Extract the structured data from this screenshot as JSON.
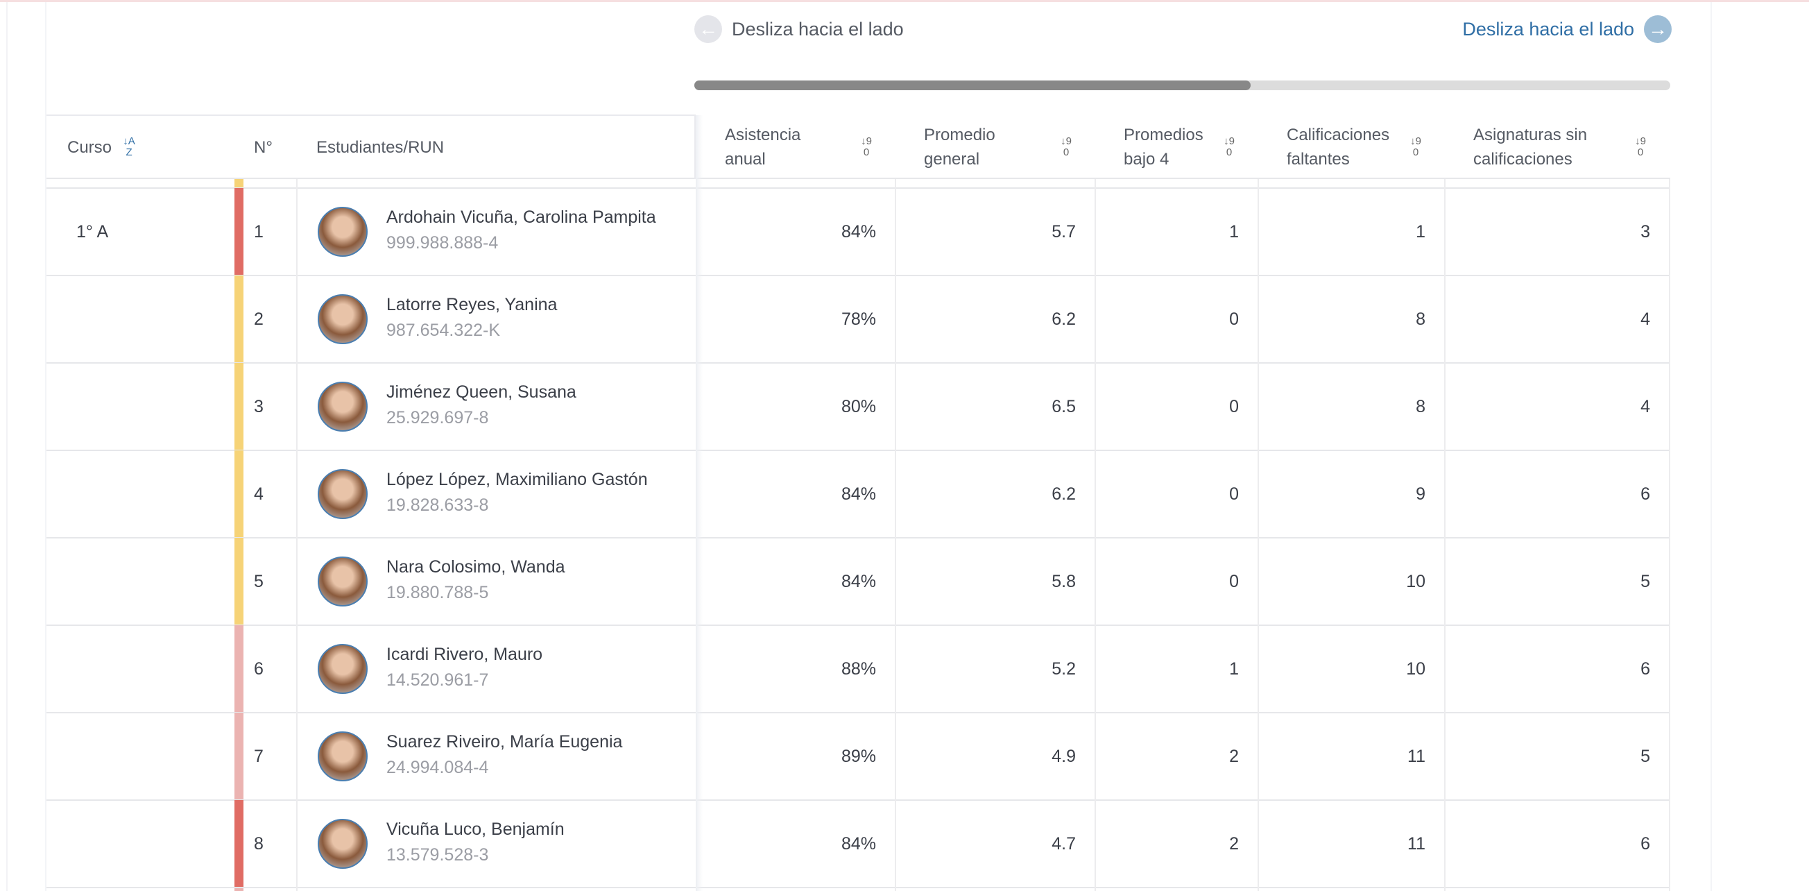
{
  "nav": {
    "prev_label": "Desliza hacia el lado",
    "next_label": "Desliza hacia el lado",
    "prev_icon": "arrow-left-icon",
    "next_icon": "arrow-right-icon"
  },
  "scroll": {
    "position_fraction": 0.57
  },
  "colors": {
    "accent": "#2f6ea5",
    "red": "#e06c64",
    "yellow": "#f6d377",
    "pink": "#ebb3b1"
  },
  "headers": {
    "curso": "Curso",
    "numero": "N°",
    "estudiantes": "Estudiantes/RUN",
    "asistencia": [
      "Asistencia",
      "anual"
    ],
    "promedio": [
      "Promedio",
      "general"
    ],
    "bajo4": [
      "Promedios",
      "bajo 4"
    ],
    "faltantes": [
      "Calificaciones",
      "faltantes"
    ],
    "sin_calif": [
      "Asignaturas sin",
      "calificaciones"
    ],
    "sort_az": "↓A Z",
    "sort_num": "↓9 0"
  },
  "course": "1° A",
  "rows": [
    {
      "n": "1",
      "name": "Ardohain Vicuña, Carolina Pampita",
      "run": "999.988.888-4",
      "asistencia": "84%",
      "promedio": "5.7",
      "bajo4": "1",
      "faltantes": "1",
      "sin_calif": "3",
      "status": "red"
    },
    {
      "n": "2",
      "name": "Latorre Reyes, Yanina",
      "run": "987.654.322-K",
      "asistencia": "78%",
      "promedio": "6.2",
      "bajo4": "0",
      "faltantes": "8",
      "sin_calif": "4",
      "status": "yellow"
    },
    {
      "n": "3",
      "name": "Jiménez Queen, Susana",
      "run": "25.929.697-8",
      "asistencia": "80%",
      "promedio": "6.5",
      "bajo4": "0",
      "faltantes": "8",
      "sin_calif": "4",
      "status": "yellow"
    },
    {
      "n": "4",
      "name": "López López, Maximiliano Gastón",
      "run": "19.828.633-8",
      "asistencia": "84%",
      "promedio": "6.2",
      "bajo4": "0",
      "faltantes": "9",
      "sin_calif": "6",
      "status": "yellow"
    },
    {
      "n": "5",
      "name": "Nara Colosimo, Wanda",
      "run": "19.880.788-5",
      "asistencia": "84%",
      "promedio": "5.8",
      "bajo4": "0",
      "faltantes": "10",
      "sin_calif": "5",
      "status": "yellow"
    },
    {
      "n": "6",
      "name": "Icardi Rivero, Mauro",
      "run": "14.520.961-7",
      "asistencia": "88%",
      "promedio": "5.2",
      "bajo4": "1",
      "faltantes": "10",
      "sin_calif": "6",
      "status": "pink"
    },
    {
      "n": "7",
      "name": "Suarez Riveiro, María Eugenia",
      "run": "24.994.084-4",
      "asistencia": "89%",
      "promedio": "4.9",
      "bajo4": "2",
      "faltantes": "11",
      "sin_calif": "5",
      "status": "pink"
    },
    {
      "n": "8",
      "name": "Vicuña Luco, Benjamín",
      "run": "13.579.528-3",
      "asistencia": "84%",
      "promedio": "4.7",
      "bajo4": "2",
      "faltantes": "11",
      "sin_calif": "6",
      "status": "red"
    }
  ]
}
